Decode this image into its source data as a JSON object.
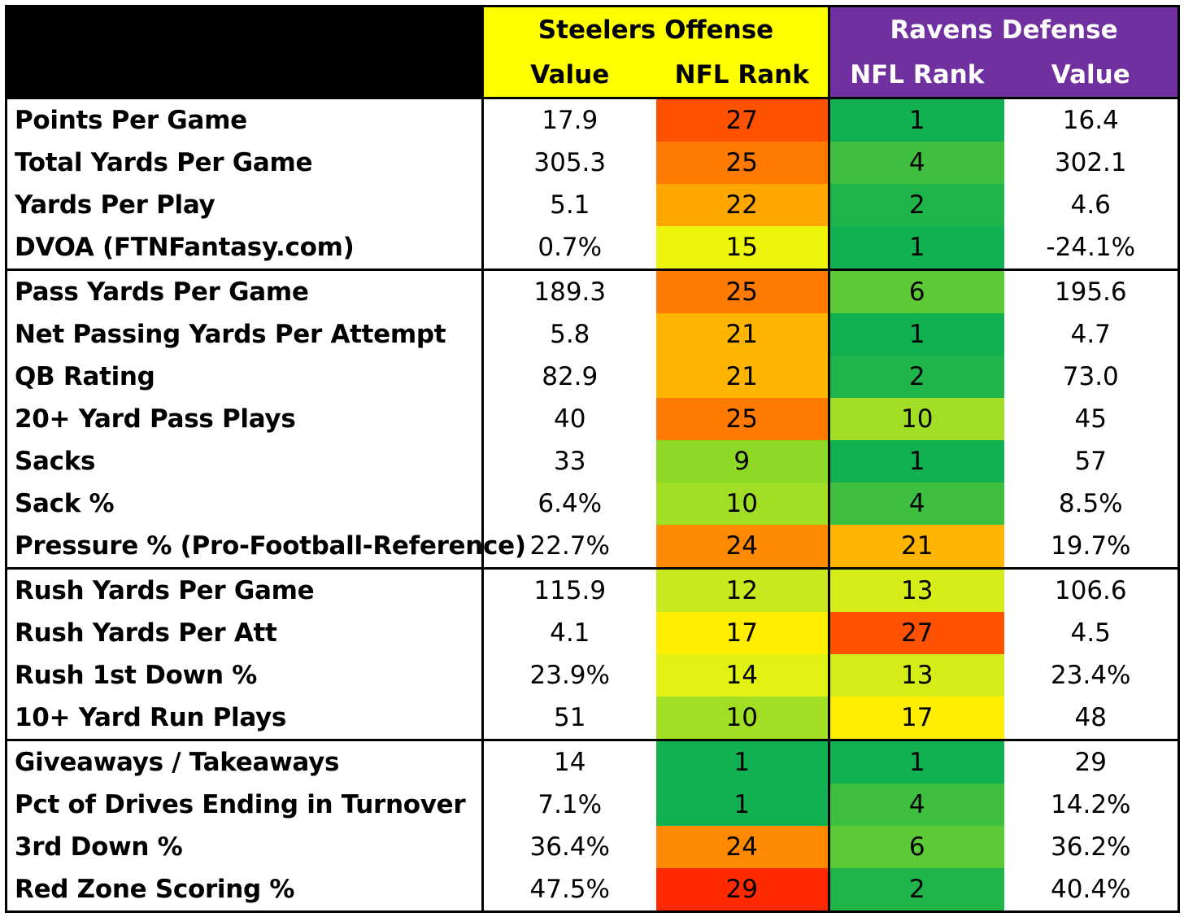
{
  "header": {
    "pit_title": "Steelers Offense",
    "bal_title": "Ravens Defense",
    "pit_value_label": "Value",
    "pit_rank_label": "NFL Rank",
    "bal_rank_label": "NFL Rank",
    "bal_value_label": "Value",
    "pit_color": "#ffff00",
    "bal_color": "#7030a0"
  },
  "sections": [
    [
      {
        "label": "Points Per Game",
        "pit_value": "17.9",
        "pit_rank": "27",
        "bal_rank": "1",
        "bal_value": "16.4"
      },
      {
        "label": "Total Yards Per Game",
        "pit_value": "305.3",
        "pit_rank": "25",
        "bal_rank": "4",
        "bal_value": "302.1"
      },
      {
        "label": "Yards Per Play",
        "pit_value": "5.1",
        "pit_rank": "22",
        "bal_rank": "2",
        "bal_value": "4.6"
      },
      {
        "label": "DVOA (FTNFantasy.com)",
        "pit_value": "0.7%",
        "pit_rank": "15",
        "bal_rank": "1",
        "bal_value": "-24.1%"
      }
    ],
    [
      {
        "label": "Pass Yards Per Game",
        "pit_value": "189.3",
        "pit_rank": "25",
        "bal_rank": "6",
        "bal_value": "195.6"
      },
      {
        "label": "Net Passing Yards Per Attempt",
        "pit_value": "5.8",
        "pit_rank": "21",
        "bal_rank": "1",
        "bal_value": "4.7"
      },
      {
        "label": "QB Rating",
        "pit_value": "82.9",
        "pit_rank": "21",
        "bal_rank": "2",
        "bal_value": "73.0"
      },
      {
        "label": "20+ Yard Pass Plays",
        "pit_value": "40",
        "pit_rank": "25",
        "bal_rank": "10",
        "bal_value": "45"
      },
      {
        "label": "Sacks",
        "pit_value": "33",
        "pit_rank": "9",
        "bal_rank": "1",
        "bal_value": "57"
      },
      {
        "label": "Sack %",
        "pit_value": "6.4%",
        "pit_rank": "10",
        "bal_rank": "4",
        "bal_value": "8.5%"
      },
      {
        "label": "Pressure % (Pro-Football-Reference)",
        "pit_value": "22.7%",
        "pit_rank": "24",
        "bal_rank": "21",
        "bal_value": "19.7%"
      }
    ],
    [
      {
        "label": "Rush Yards Per Game",
        "pit_value": "115.9",
        "pit_rank": "12",
        "bal_rank": "13",
        "bal_value": "106.6"
      },
      {
        "label": "Rush Yards Per Att",
        "pit_value": "4.1",
        "pit_rank": "17",
        "bal_rank": "27",
        "bal_value": "4.5"
      },
      {
        "label": "Rush 1st Down %",
        "pit_value": "23.9%",
        "pit_rank": "14",
        "bal_rank": "13",
        "bal_value": "23.4%"
      },
      {
        "label": "10+ Yard Run Plays",
        "pit_value": "51",
        "pit_rank": "10",
        "bal_rank": "17",
        "bal_value": "48"
      }
    ],
    [
      {
        "label": "Giveaways / Takeaways",
        "pit_value": "14",
        "pit_rank": "1",
        "bal_rank": "1",
        "bal_value": "29"
      },
      {
        "label": "Pct of Drives Ending in Turnover",
        "pit_value": "7.1%",
        "pit_rank": "1",
        "bal_rank": "4",
        "bal_value": "14.2%"
      },
      {
        "label": "3rd Down %",
        "pit_value": "36.4%",
        "pit_rank": "24",
        "bal_rank": "6",
        "bal_value": "36.2%"
      },
      {
        "label": "Red Zone Scoring %",
        "pit_value": "47.5%",
        "pit_rank": "29",
        "bal_rank": "2",
        "bal_value": "40.4%"
      }
    ]
  ]
}
